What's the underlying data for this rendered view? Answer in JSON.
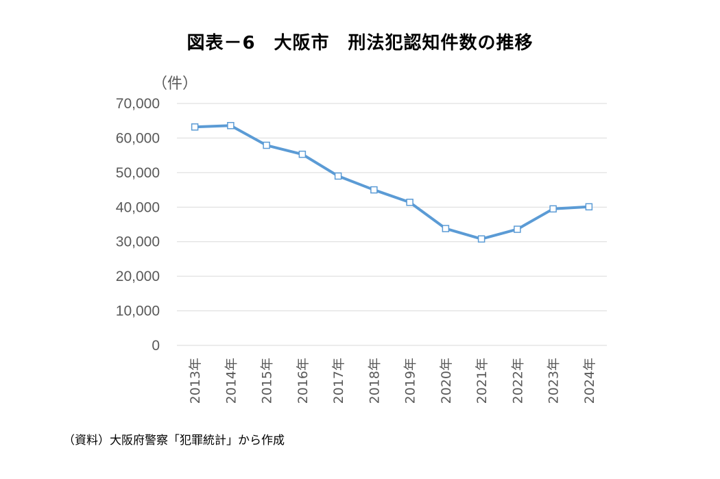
{
  "title": "図表－6　大阪市　刑法犯認知件数の推移",
  "unit_label": "（件）",
  "source_note": "（資料）大阪府警察「犯罪統計」から作成",
  "chart_data": {
    "type": "line",
    "title": "図表－6　大阪市　刑法犯認知件数の推移",
    "xlabel": "",
    "ylabel": "（件）",
    "categories": [
      "2013年",
      "2014年",
      "2015年",
      "2016年",
      "2017年",
      "2018年",
      "2019年",
      "2020年",
      "2021年",
      "2022年",
      "2023年",
      "2024年"
    ],
    "series": [
      {
        "values": [
          63200,
          63600,
          57900,
          55300,
          49000,
          45000,
          41400,
          33800,
          30800,
          33600,
          39500,
          40100
        ]
      }
    ],
    "ylim": [
      0,
      70000
    ],
    "yticks": [
      "0",
      "10,000",
      "20,000",
      "30,000",
      "40,000",
      "50,000",
      "60,000",
      "70,000"
    ],
    "ytick_values": [
      0,
      10000,
      20000,
      30000,
      40000,
      50000,
      60000,
      70000
    ],
    "grid": true,
    "legend": "none",
    "line_color": "#5B9BD5",
    "marker_fill": "#ffffff"
  }
}
